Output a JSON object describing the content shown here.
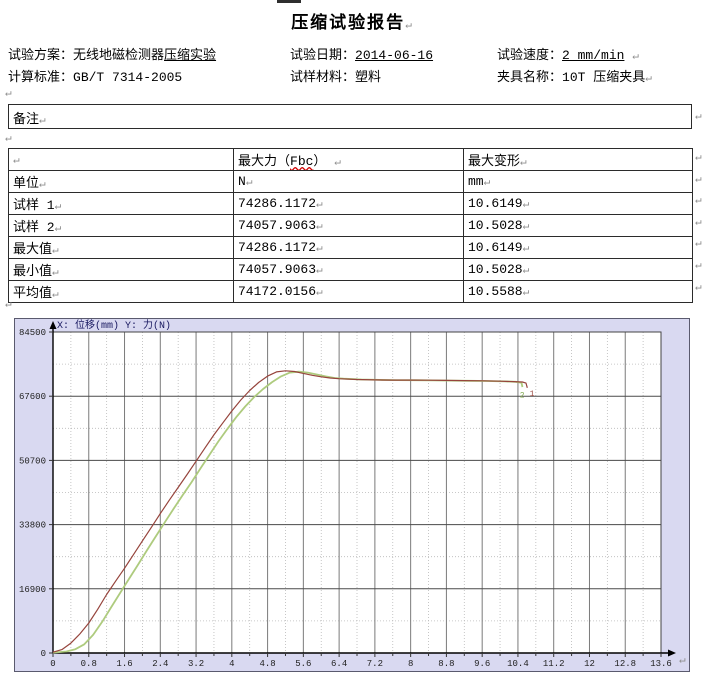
{
  "page": {
    "title": "压缩试验报告",
    "pilcrow": "↵"
  },
  "header": {
    "f1": {
      "label": "试验方案：",
      "value": "无线地磁检测器",
      "value_underlined": "压缩实验"
    },
    "f2": {
      "label": "试验日期：",
      "value_underlined": "2014-06-16"
    },
    "f3": {
      "label": "试验速度：",
      "value_underlined": "2 mm/min"
    },
    "f4": {
      "label": "计算标准：",
      "value": "GB/T 7314-2005"
    },
    "f5": {
      "label": "试样材料：",
      "value": "塑料"
    },
    "f6": {
      "label": "夹具名称：",
      "value": "10T 压缩夹具"
    }
  },
  "remarks": {
    "label": "备注"
  },
  "table": {
    "header": {
      "col1": "",
      "col2_pre": "最大力（",
      "col2_wavy": "Fbc",
      "col2_post": "）",
      "col3": "最大变形"
    },
    "rows": [
      {
        "label": "单位",
        "force": "N",
        "deform": "mm"
      },
      {
        "label": "试样 1",
        "force": "74286.1172",
        "deform": "10.6149"
      },
      {
        "label": "试样 2",
        "force": "74057.9063",
        "deform": "10.5028"
      },
      {
        "label": "最大值",
        "force": "74286.1172",
        "deform": "10.6149"
      },
      {
        "label": "最小值",
        "force": "74057.9063",
        "deform": "10.5028"
      },
      {
        "label": "平均值",
        "force": "74172.0156",
        "deform": "10.5588"
      }
    ]
  },
  "chart_data": {
    "type": "line",
    "title": "X: 位移(mm)  Y: 力(N)",
    "xlabel": "位移(mm)",
    "ylabel": "力(N)",
    "xlim": [
      0,
      13.6
    ],
    "ylim": [
      0,
      84500
    ],
    "x_major_step": 0.8,
    "x_minor_step": 0.4,
    "y_major_step": 16900,
    "y_minor_step": 8450,
    "x_tick_labels": [
      "0",
      "0.8",
      "1.6",
      "2.4",
      "3.2",
      "4",
      "4.8",
      "5.6",
      "6.4",
      "7.2",
      "8",
      "8.8",
      "9.6",
      "10.4",
      "11.2",
      "12",
      "12.8",
      "13.6"
    ],
    "y_tick_labels": [
      "0",
      "16900",
      "33800",
      "50700",
      "67600",
      "84500"
    ],
    "grid": "on",
    "colors": {
      "plot_bg": "#ffffff",
      "outer_bg": "#d9d9f1",
      "grid_major_v": "#7a7a7a",
      "grid_minor": "#b8b8b8",
      "grid_major_h": "#4a4a4a",
      "axis": "#000000",
      "title_text": "#181860",
      "tick_text": "#222222"
    },
    "series": [
      {
        "name": "1",
        "color": "#96443c",
        "points": [
          [
            0,
            200
          ],
          [
            0.2,
            900
          ],
          [
            0.4,
            2600
          ],
          [
            0.6,
            5000
          ],
          [
            0.8,
            7900
          ],
          [
            1.0,
            11500
          ],
          [
            1.2,
            15400
          ],
          [
            1.4,
            18900
          ],
          [
            1.6,
            22300
          ],
          [
            1.8,
            25900
          ],
          [
            2.0,
            29500
          ],
          [
            2.2,
            33100
          ],
          [
            2.4,
            36700
          ],
          [
            2.6,
            40200
          ],
          [
            2.8,
            43600
          ],
          [
            3.0,
            47000
          ],
          [
            3.2,
            50500
          ],
          [
            3.4,
            54000
          ],
          [
            3.6,
            57400
          ],
          [
            3.8,
            60600
          ],
          [
            4.0,
            63700
          ],
          [
            4.2,
            66600
          ],
          [
            4.4,
            69100
          ],
          [
            4.6,
            71200
          ],
          [
            4.8,
            72900
          ],
          [
            5.0,
            74000
          ],
          [
            5.2,
            74286
          ],
          [
            5.4,
            74100
          ],
          [
            5.6,
            73600
          ],
          [
            5.8,
            73100
          ],
          [
            6.0,
            72700
          ],
          [
            6.2,
            72400
          ],
          [
            6.4,
            72200
          ],
          [
            6.8,
            72000
          ],
          [
            7.2,
            71900
          ],
          [
            7.6,
            71850
          ],
          [
            8.0,
            71850
          ],
          [
            8.4,
            71800
          ],
          [
            8.8,
            71750
          ],
          [
            9.2,
            71700
          ],
          [
            9.6,
            71650
          ],
          [
            10.0,
            71550
          ],
          [
            10.3,
            71450
          ],
          [
            10.5,
            71350
          ],
          [
            10.58,
            71050
          ],
          [
            10.61,
            69800
          ]
        ]
      },
      {
        "name": "2",
        "color": "#aecb7e",
        "points": [
          [
            0,
            100
          ],
          [
            0.3,
            400
          ],
          [
            0.5,
            1000
          ],
          [
            0.7,
            2300
          ],
          [
            0.9,
            4800
          ],
          [
            1.1,
            8200
          ],
          [
            1.3,
            12000
          ],
          [
            1.5,
            15800
          ],
          [
            1.7,
            19500
          ],
          [
            1.9,
            23200
          ],
          [
            2.1,
            27000
          ],
          [
            2.3,
            30700
          ],
          [
            2.5,
            34400
          ],
          [
            2.7,
            38000
          ],
          [
            2.9,
            41500
          ],
          [
            3.1,
            45000
          ],
          [
            3.3,
            48600
          ],
          [
            3.5,
            52200
          ],
          [
            3.7,
            55700
          ],
          [
            3.9,
            59000
          ],
          [
            4.1,
            62100
          ],
          [
            4.3,
            64900
          ],
          [
            4.5,
            67400
          ],
          [
            4.7,
            69500
          ],
          [
            4.9,
            71300
          ],
          [
            5.1,
            72800
          ],
          [
            5.3,
            73800
          ],
          [
            5.5,
            74058
          ],
          [
            5.7,
            73800
          ],
          [
            5.9,
            73300
          ],
          [
            6.1,
            72800
          ],
          [
            6.3,
            72400
          ],
          [
            6.5,
            72200
          ],
          [
            6.9,
            72000
          ],
          [
            7.3,
            71900
          ],
          [
            7.7,
            71850
          ],
          [
            8.1,
            71800
          ],
          [
            8.5,
            71750
          ],
          [
            8.9,
            71700
          ],
          [
            9.3,
            71650
          ],
          [
            9.7,
            71600
          ],
          [
            10.1,
            71500
          ],
          [
            10.35,
            71400
          ],
          [
            10.48,
            71150
          ],
          [
            10.5,
            70000
          ]
        ]
      }
    ],
    "end_labels": [
      {
        "text": "2",
        "color": "#7fa84e",
        "x": 10.44,
        "y": 67300
      },
      {
        "text": "1",
        "color": "#96443c",
        "x": 10.66,
        "y": 67600
      }
    ]
  }
}
